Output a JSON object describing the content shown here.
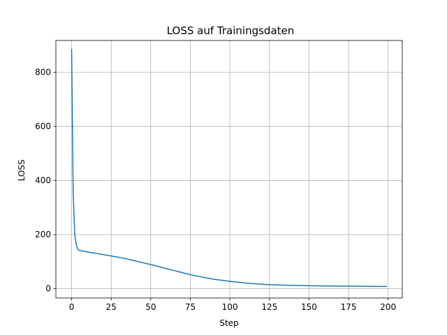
{
  "chart_data": {
    "type": "line",
    "title": "LOSS auf Trainingsdaten",
    "xlabel": "Step",
    "ylabel": "LOSS",
    "xlim": [
      -9.95,
      208.95
    ],
    "ylim": [
      -34.5,
      918
    ],
    "xticks": [
      0,
      25,
      50,
      75,
      100,
      125,
      150,
      175,
      200
    ],
    "yticks": [
      0,
      200,
      400,
      600,
      800
    ],
    "grid": true,
    "series_color": "#1f77b4",
    "series": [
      {
        "x": [
          0,
          1,
          2,
          3,
          4,
          5,
          6,
          8,
          10,
          15,
          20,
          25,
          30,
          35,
          40,
          45,
          50,
          55,
          60,
          65,
          70,
          75,
          80,
          85,
          90,
          95,
          100,
          105,
          110,
          115,
          120,
          125,
          130,
          135,
          140,
          145,
          150,
          155,
          160,
          165,
          170,
          175,
          180,
          185,
          190,
          195,
          199
        ],
        "y": [
          885,
          350,
          200,
          160,
          145,
          141,
          140,
          138,
          136,
          131,
          126,
          121,
          116,
          110,
          103,
          96,
          89,
          82,
          74,
          67,
          59,
          52,
          46,
          40,
          35,
          31,
          27,
          24,
          21,
          18.5,
          16.5,
          15,
          14,
          13,
          12.2,
          11.5,
          11,
          10.5,
          10.1,
          9.8,
          9.5,
          9.3,
          9.1,
          8.9,
          8.7,
          8.5,
          8.4
        ]
      }
    ]
  }
}
